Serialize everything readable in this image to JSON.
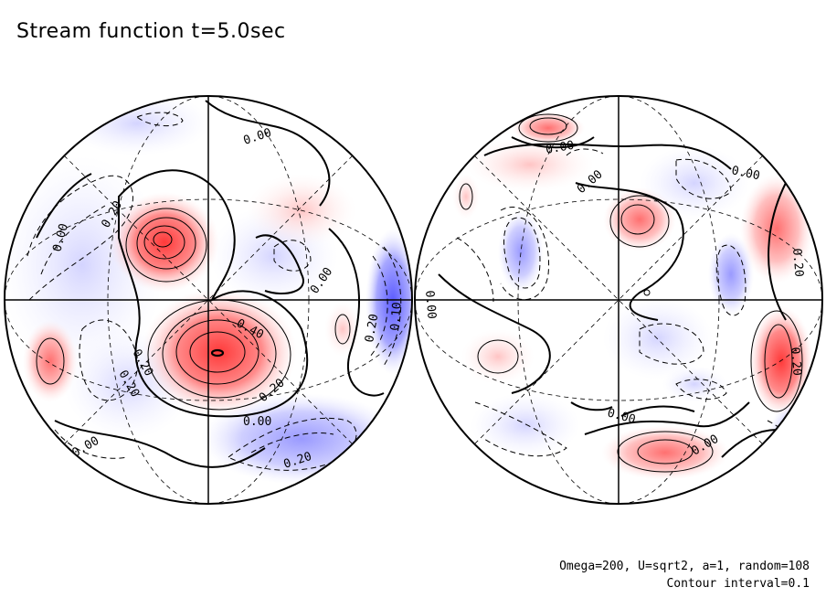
{
  "title": "Stream function t=5.0sec",
  "params_text": "Omega=200, U=sqrt2, a=1, random=108",
  "interval_text": "Contour interval=0.1",
  "colors": {
    "positive": "#ff4b4b",
    "negative": "#5a5aff",
    "line": "#000000"
  },
  "contour_labels": {
    "left": [
      "0.00",
      "0.20",
      "0.00",
      "0.40",
      "0.20",
      "0.00",
      "0.20",
      "0.00",
      "0.20",
      "0.10",
      "0.20",
      "0.00",
      "0.20"
    ],
    "right": [
      "0.00",
      "0.00",
      "0.00",
      "0.20",
      "0.00",
      "0.00",
      "0.00",
      "0.20"
    ]
  }
}
